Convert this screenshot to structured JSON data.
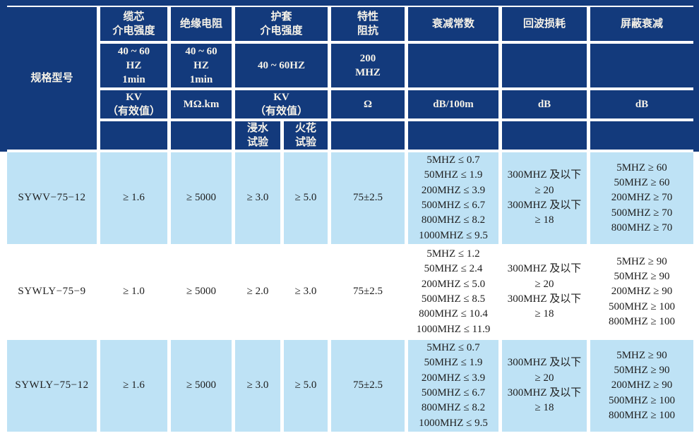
{
  "colors": {
    "header_bg": "#133a7c",
    "header_text": "#f6f2e8",
    "row_highlight_bg": "#bee2f5",
    "row_plain_bg": "#ffffff",
    "body_text": "#1d1d1d"
  },
  "header": {
    "model_col": "规格型号",
    "groups": [
      {
        "title": "缆芯\n介电强度",
        "condition": "40 ~ 60\nHZ\n1min",
        "unit": "KV\n（有效值）"
      },
      {
        "title": "绝缘电阻",
        "condition": "40 ~ 60\nHZ\n1min",
        "unit": "MΩ.km"
      },
      {
        "title": "护套\n介电强度",
        "condition": "40 ~ 60HZ",
        "unit": "KV\n（有效值）",
        "subtests": [
          "浸水\n试验",
          "火花\n试验"
        ]
      },
      {
        "title": "特性\n阻抗",
        "condition": "200\nMHZ",
        "unit": "Ω"
      },
      {
        "title": "衰减常数",
        "condition": "",
        "unit": "dB/100m"
      },
      {
        "title": "回波损耗",
        "condition": "",
        "unit": "dB"
      },
      {
        "title": "屏蔽衰减",
        "condition": "",
        "unit": "dB"
      }
    ]
  },
  "rows": [
    {
      "model": "SYWV−75−12",
      "core_dielectric": "≥ 1.6",
      "insulation_resistance": "≥ 5000",
      "sheath_water_test": "≥ 3.0",
      "sheath_spark_test": "≥ 5.0",
      "impedance": "75±2.5",
      "attenuation": [
        "5MHZ ≤ 0.7",
        "50MHZ ≤ 1.9",
        "200MHZ ≤ 3.9",
        "500MHZ ≤ 6.7",
        "800MHZ ≤ 8.2",
        "1000MHZ ≤ 9.5"
      ],
      "return_loss": [
        "300MHZ 及以下",
        "≥ 20",
        "300MHZ 及以下",
        "≥ 18"
      ],
      "shield_attenuation": [
        "5MHZ ≥ 60",
        "50MHZ ≥ 60",
        "200MHZ ≥ 70",
        "500MHZ ≥ 70",
        "800MHZ ≥ 70"
      ]
    },
    {
      "model": "SYWLY−75−9",
      "core_dielectric": "≥ 1.0",
      "insulation_resistance": "≥ 5000",
      "sheath_water_test": "≥ 2.0",
      "sheath_spark_test": "≥ 3.0",
      "impedance": "75±2.5",
      "attenuation": [
        "5MHZ ≤ 1.2",
        "50MHZ ≤ 2.4",
        "200MHZ ≤ 5.0",
        "500MHZ ≤ 8.5",
        "800MHZ ≤ 10.4",
        "1000MHZ ≤ 11.9"
      ],
      "return_loss": [
        "300MHZ 及以下",
        "≥ 20",
        "300MHZ 及以下",
        "≥ 18"
      ],
      "shield_attenuation": [
        "5MHZ ≥ 90",
        "50MHZ ≥ 90",
        "200MHZ ≥ 90",
        "500MHZ ≥ 100",
        "800MHZ ≥ 100"
      ]
    },
    {
      "model": "SYWLY−75−12",
      "core_dielectric": "≥ 1.6",
      "insulation_resistance": "≥ 5000",
      "sheath_water_test": "≥ 3.0",
      "sheath_spark_test": "≥ 5.0",
      "impedance": "75±2.5",
      "attenuation": [
        "5MHZ ≤ 0.7",
        "50MHZ ≤ 1.9",
        "200MHZ ≤ 3.9",
        "500MHZ ≤ 6.7",
        "800MHZ ≤ 8.2",
        "1000MHZ ≤ 9.5"
      ],
      "return_loss": [
        "300MHZ 及以下",
        "≥ 20",
        "300MHZ 及以下",
        "≥ 18"
      ],
      "shield_attenuation": [
        "5MHZ ≥ 90",
        "50MHZ ≥ 90",
        "200MHZ ≥ 90",
        "500MHZ ≥ 100",
        "800MHZ ≥ 100"
      ]
    }
  ]
}
